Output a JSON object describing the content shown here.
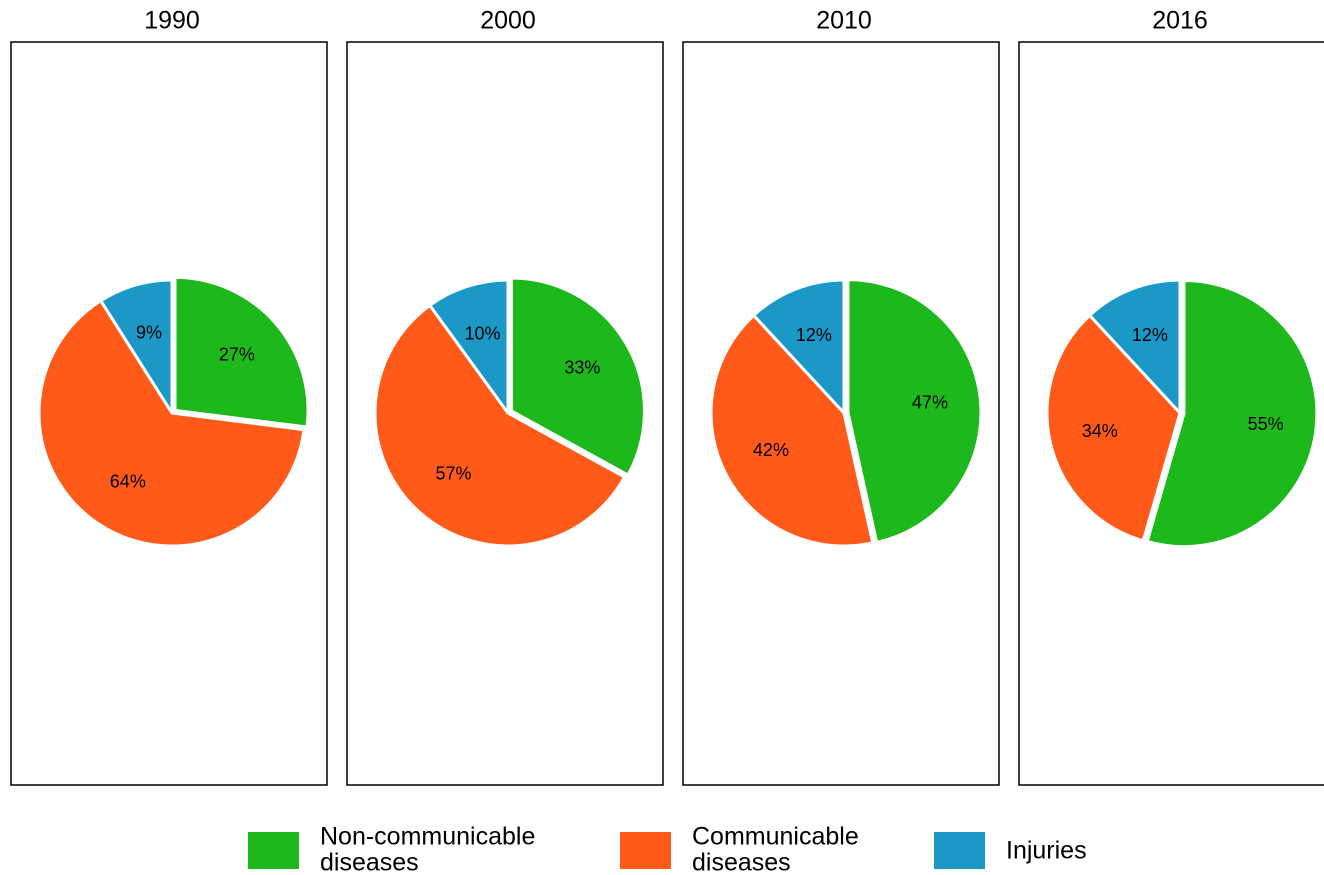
{
  "chart_data": {
    "type": "pie",
    "legend_position": "bottom",
    "categories": [
      "Non-communicable diseases",
      "Communicable diseases",
      "Injuries"
    ],
    "colors": {
      "Non-communicable diseases": "#1cb81c",
      "Communicable diseases": "#ff5a1a",
      "Injuries": "#1b98c6"
    },
    "panels": [
      {
        "title": "1990",
        "slices": [
          {
            "category": "Non-communicable diseases",
            "value": 27,
            "label": "27%"
          },
          {
            "category": "Communicable diseases",
            "value": 64,
            "label": "64%"
          },
          {
            "category": "Injuries",
            "value": 9,
            "label": "9%"
          }
        ]
      },
      {
        "title": "2000",
        "slices": [
          {
            "category": "Non-communicable diseases",
            "value": 33,
            "label": "33%"
          },
          {
            "category": "Communicable diseases",
            "value": 57,
            "label": "57%"
          },
          {
            "category": "Injuries",
            "value": 10,
            "label": "10%"
          }
        ]
      },
      {
        "title": "2010",
        "slices": [
          {
            "category": "Non-communicable diseases",
            "value": 47,
            "label": "47%"
          },
          {
            "category": "Communicable diseases",
            "value": 42,
            "label": "42%"
          },
          {
            "category": "Injuries",
            "value": 12,
            "label": "12%"
          }
        ]
      },
      {
        "title": "2016",
        "slices": [
          {
            "category": "Non-communicable diseases",
            "value": 55,
            "label": "55%"
          },
          {
            "category": "Communicable diseases",
            "value": 34,
            "label": "34%"
          },
          {
            "category": "Injuries",
            "value": 12,
            "label": "12%"
          }
        ]
      }
    ],
    "legend": [
      {
        "category": "Non-communicable diseases",
        "line1": "Non-communicable",
        "line2": "diseases"
      },
      {
        "category": "Communicable diseases",
        "line1": "Communicable",
        "line2": "diseases"
      },
      {
        "category": "Injuries",
        "line1": "Injuries",
        "line2": ""
      }
    ]
  }
}
